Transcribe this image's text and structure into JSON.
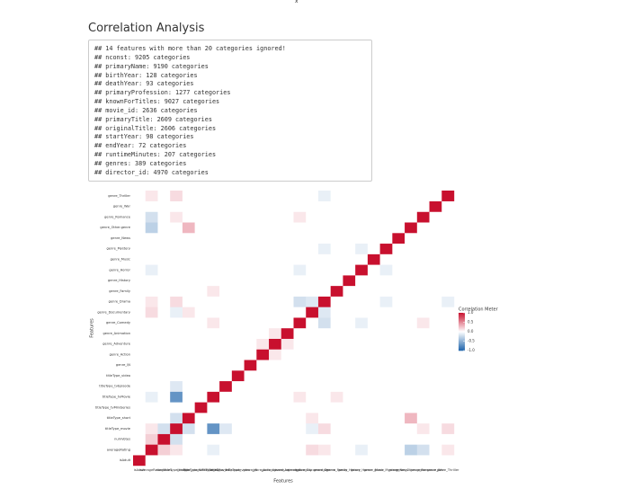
{
  "page_header": {
    "axis_stub": "x"
  },
  "section": {
    "title": "Correlation Analysis",
    "code_lines": [
      "## 14 features with more than 20 categories ignored!",
      "## nconst: 9205 categories",
      "## primaryName: 9190 categories",
      "## birthYear: 128 categories",
      "## deathYear: 93 categories",
      "## primaryProfession: 1277 categories",
      "## knownForTitles: 9027 categories",
      "## movie_id: 2636 categories",
      "## primaryTitle: 2609 categories",
      "## originalTitle: 2606 categories",
      "## startYear: 98 categories",
      "## endYear: 72 categories",
      "## runtimeMinutes: 207 categories",
      "## genres: 389 categories",
      "## director_id: 4970 categories"
    ]
  },
  "chart_data": {
    "type": "heatmap",
    "xlabel": "Features",
    "ylabel": "Features",
    "categories": [
      "isAdult",
      "averageRating",
      "numVotes",
      "titleType_movie",
      "titleType_short",
      "titleType_tvMiniSeries",
      "titleType_tvMovie",
      "titleType_tvEpisode",
      "titleType_video",
      "genre_\\N",
      "genre_Action",
      "genre_Adventure",
      "genre_Animation",
      "genre_Comedy",
      "genre_Documentary",
      "genre_Drama",
      "genre_Family",
      "genre_History",
      "genre_Horror",
      "genre_Music",
      "genre_Mystery",
      "genre_News",
      "genre_Other.genre",
      "genre_Romance",
      "genre_War",
      "genre_Thriller"
    ],
    "values": [
      [
        1,
        0,
        0,
        0,
        0,
        0,
        0,
        0,
        0,
        0,
        0,
        0,
        0,
        0,
        0,
        0,
        0,
        0,
        0,
        0,
        0,
        0,
        0,
        0,
        0,
        0
      ],
      [
        0,
        1,
        0.2,
        0.1,
        0,
        0,
        -0.1,
        0,
        0,
        0,
        0,
        0,
        0,
        0,
        0.15,
        0.1,
        0,
        0,
        -0.1,
        0,
        0,
        0,
        -0.3,
        -0.2,
        0,
        0.1
      ],
      [
        0,
        0.2,
        1,
        -0.2,
        0,
        0,
        0,
        0,
        0,
        0,
        0,
        0,
        0,
        0,
        0,
        0,
        0,
        0,
        0,
        0,
        0,
        0,
        0,
        0,
        0,
        0
      ],
      [
        0,
        0.1,
        -0.2,
        1,
        -0.2,
        0,
        -0.7,
        -0.15,
        0,
        0,
        0,
        0,
        0,
        0,
        -0.1,
        0.15,
        0,
        0,
        0,
        0,
        0,
        0,
        0,
        0.1,
        0,
        0.15
      ],
      [
        0,
        0,
        0,
        -0.2,
        1,
        0,
        0,
        0,
        0,
        0,
        0,
        0,
        0,
        0,
        0.1,
        0,
        0,
        0,
        0,
        0,
        0,
        0,
        0.3,
        0,
        0,
        0
      ],
      [
        0,
        0,
        0,
        0,
        0,
        1,
        0,
        0,
        0,
        0,
        0,
        0,
        0,
        0,
        0,
        0,
        0,
        0,
        0,
        0,
        0,
        0,
        0,
        0,
        0,
        0
      ],
      [
        0,
        -0.1,
        0,
        -0.7,
        0,
        0,
        1,
        0,
        0,
        0,
        0,
        0,
        0,
        0.1,
        0,
        0,
        0.1,
        0,
        0,
        0,
        0,
        0,
        0,
        0,
        0,
        0
      ],
      [
        0,
        0,
        0,
        -0.15,
        0,
        0,
        0,
        1,
        0,
        0,
        0,
        0,
        0,
        0,
        0,
        0,
        0,
        0,
        0,
        0,
        0,
        0,
        0,
        0,
        0,
        0
      ],
      [
        0,
        0,
        0,
        0,
        0,
        0,
        0,
        0,
        1,
        0,
        0,
        0,
        0,
        0,
        0,
        0,
        0,
        0,
        0,
        0,
        0,
        0,
        0,
        0,
        0,
        0
      ],
      [
        0,
        0,
        0,
        0,
        0,
        0,
        0,
        0,
        0,
        1,
        0,
        0,
        0,
        0,
        0,
        0,
        0,
        0,
        0,
        0,
        0,
        0,
        0,
        0,
        0,
        0
      ],
      [
        0,
        0,
        0,
        0,
        0,
        0,
        0,
        0,
        0,
        0,
        1,
        0.1,
        0,
        0,
        0,
        0,
        0,
        0,
        0,
        0,
        0,
        0,
        0,
        0,
        0,
        0
      ],
      [
        0,
        0,
        0,
        0,
        0,
        0,
        0,
        0,
        0,
        0,
        0.1,
        1,
        0.1,
        0,
        0,
        0,
        0,
        0,
        0,
        0,
        0,
        0,
        0,
        0,
        0,
        0
      ],
      [
        0,
        0,
        0,
        0,
        0,
        0,
        0,
        0,
        0,
        0,
        0,
        0.1,
        1,
        0,
        0,
        0,
        0,
        0,
        0,
        0,
        0,
        0,
        0,
        0,
        0,
        0
      ],
      [
        0,
        0,
        0,
        0,
        0,
        0,
        0.1,
        0,
        0,
        0,
        0,
        0,
        0,
        1,
        0,
        -0.2,
        0,
        0,
        -0.1,
        0,
        0,
        0,
        0,
        0.1,
        0,
        0
      ],
      [
        0,
        0.15,
        0,
        -0.1,
        0.1,
        0,
        0,
        0,
        0,
        0,
        0,
        0,
        0,
        0,
        1,
        -0.15,
        0,
        0,
        0,
        0,
        0,
        0,
        0,
        0,
        0,
        0
      ],
      [
        0,
        0.1,
        0,
        0.15,
        0,
        0,
        0,
        0,
        0,
        0,
        0,
        0,
        0,
        -0.2,
        -0.15,
        1,
        0,
        0,
        0,
        0,
        -0.1,
        0,
        0,
        0,
        0,
        -0.1
      ],
      [
        0,
        0,
        0,
        0,
        0,
        0,
        0.1,
        0,
        0,
        0,
        0,
        0,
        0,
        0,
        0,
        0,
        1,
        0,
        0,
        0,
        0,
        0,
        0,
        0,
        0,
        0
      ],
      [
        0,
        0,
        0,
        0,
        0,
        0,
        0,
        0,
        0,
        0,
        0,
        0,
        0,
        0,
        0,
        0,
        0,
        1,
        0,
        0,
        0,
        0,
        0,
        0,
        0,
        0
      ],
      [
        0,
        -0.1,
        0,
        0,
        0,
        0,
        0,
        0,
        0,
        0,
        0,
        0,
        0,
        -0.1,
        0,
        0,
        0,
        0,
        1,
        0,
        -0.1,
        0,
        0,
        0,
        0,
        0
      ],
      [
        0,
        0,
        0,
        0,
        0,
        0,
        0,
        0,
        0,
        0,
        0,
        0,
        0,
        0,
        0,
        0,
        0,
        0,
        0,
        1,
        0,
        0,
        0,
        0,
        0,
        0
      ],
      [
        0,
        0,
        0,
        0,
        0,
        0,
        0,
        0,
        0,
        0,
        0,
        0,
        0,
        0,
        0,
        -0.1,
        0,
        0,
        -0.1,
        0,
        1,
        0,
        0,
        0,
        0,
        0
      ],
      [
        0,
        0,
        0,
        0,
        0,
        0,
        0,
        0,
        0,
        0,
        0,
        0,
        0,
        0,
        0,
        0,
        0,
        0,
        0,
        0,
        0,
        1,
        0,
        0,
        0,
        0
      ],
      [
        0,
        -0.3,
        0,
        0,
        0.3,
        0,
        0,
        0,
        0,
        0,
        0,
        0,
        0,
        0,
        0,
        0,
        0,
        0,
        0,
        0,
        0,
        0,
        1,
        0,
        0,
        0
      ],
      [
        0,
        -0.2,
        0,
        0.1,
        0,
        0,
        0,
        0,
        0,
        0,
        0,
        0,
        0,
        0.1,
        0,
        0,
        0,
        0,
        0,
        0,
        0,
        0,
        0,
        1,
        0,
        0
      ],
      [
        0,
        0,
        0,
        0,
        0,
        0,
        0,
        0,
        0,
        0,
        0,
        0,
        0,
        0,
        0,
        0,
        0,
        0,
        0,
        0,
        0,
        0,
        0,
        0,
        1,
        0
      ],
      [
        0,
        0.1,
        0,
        0.15,
        0,
        0,
        0,
        0,
        0,
        0,
        0,
        0,
        0,
        0,
        0,
        -0.1,
        0,
        0,
        0,
        0,
        0,
        0,
        0,
        0,
        0,
        1
      ]
    ],
    "legend_title": "Correlation Meter",
    "colorlim": [
      -1,
      1
    ],
    "colors": [
      "#2166ac",
      "#ffffff",
      "#c8102e"
    ],
    "legend_ticks": [
      {
        "value": 1,
        "label": "1.0"
      },
      {
        "value": 0.5,
        "label": "0.5"
      },
      {
        "value": 0,
        "label": "0.0"
      },
      {
        "value": -0.5,
        "label": "-0.5"
      },
      {
        "value": -1,
        "label": "-1.0"
      }
    ]
  }
}
